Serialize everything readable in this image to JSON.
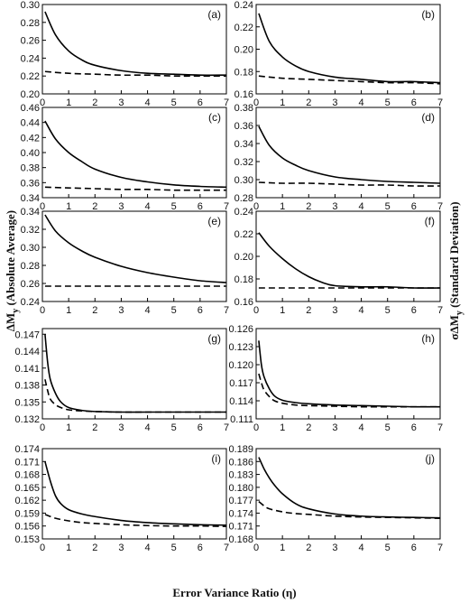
{
  "figure": {
    "xlabel": "Error Variance Ratio (η)",
    "ylabel_left": "ΔM",
    "ylabel_left_sub": "y",
    "ylabel_left_rest": "(Absolute Average)",
    "ylabel_right": "σΔM",
    "ylabel_right_sub": "y",
    "ylabel_right_rest": "(Standard Deviation)"
  },
  "chart_data": [
    {
      "type": "line",
      "panel_label": "(a)",
      "xlim": [
        0,
        7
      ],
      "xticks": [
        0,
        1,
        2,
        3,
        4,
        5,
        6,
        7
      ],
      "ylim": [
        0.2,
        0.3
      ],
      "yticks": [
        0.2,
        0.22,
        0.24,
        0.26,
        0.28,
        0.3
      ],
      "ytick_labels": [
        "0.20",
        "0.22",
        "0.24",
        "0.26",
        "0.28",
        "0.30"
      ],
      "series": [
        {
          "style": "solid",
          "x": [
            0.1,
            0.5,
            1,
            1.5,
            2,
            3,
            4,
            5,
            6,
            7
          ],
          "y": [
            0.292,
            0.266,
            0.248,
            0.238,
            0.232,
            0.226,
            0.223,
            0.222,
            0.221,
            0.221
          ]
        },
        {
          "style": "dashed",
          "x": [
            0.1,
            1,
            2,
            3,
            4,
            5,
            6,
            7
          ],
          "y": [
            0.225,
            0.223,
            0.222,
            0.221,
            0.221,
            0.22,
            0.22,
            0.22
          ]
        }
      ]
    },
    {
      "type": "line",
      "panel_label": "(b)",
      "xlim": [
        0,
        7
      ],
      "xticks": [
        0,
        1,
        2,
        3,
        4,
        5,
        6,
        7
      ],
      "ylim": [
        0.16,
        0.24
      ],
      "yticks": [
        0.16,
        0.18,
        0.2,
        0.22,
        0.24
      ],
      "ytick_labels": [
        "0.16",
        "0.18",
        "0.20",
        "0.22",
        "0.24"
      ],
      "series": [
        {
          "style": "solid",
          "x": [
            0.1,
            0.5,
            1,
            1.5,
            2,
            3,
            4,
            5,
            6,
            7
          ],
          "y": [
            0.232,
            0.207,
            0.193,
            0.185,
            0.18,
            0.175,
            0.173,
            0.171,
            0.171,
            0.17
          ]
        },
        {
          "style": "dashed",
          "x": [
            0.1,
            1,
            2,
            3,
            4,
            5,
            6,
            7
          ],
          "y": [
            0.176,
            0.174,
            0.173,
            0.172,
            0.171,
            0.17,
            0.17,
            0.169
          ]
        }
      ]
    },
    {
      "type": "line",
      "panel_label": "(c)",
      "xlim": [
        0,
        7
      ],
      "xticks": [
        0,
        1,
        2,
        3,
        4,
        5,
        6,
        7
      ],
      "ylim": [
        0.34,
        0.46
      ],
      "yticks": [
        0.34,
        0.36,
        0.38,
        0.4,
        0.42,
        0.44,
        0.46
      ],
      "ytick_labels": [
        "0.34",
        "0.36",
        "0.38",
        "0.40",
        "0.42",
        "0.44",
        "0.46"
      ],
      "series": [
        {
          "style": "solid",
          "x": [
            0.1,
            0.5,
            1,
            1.5,
            2,
            3,
            4,
            5,
            6,
            7
          ],
          "y": [
            0.442,
            0.418,
            0.4,
            0.388,
            0.378,
            0.367,
            0.361,
            0.357,
            0.355,
            0.354
          ]
        },
        {
          "style": "dashed",
          "x": [
            0.1,
            1,
            2,
            3,
            4,
            5,
            6,
            7
          ],
          "y": [
            0.354,
            0.353,
            0.352,
            0.351,
            0.351,
            0.35,
            0.35,
            0.35
          ]
        }
      ]
    },
    {
      "type": "line",
      "panel_label": "(d)",
      "xlim": [
        0,
        7
      ],
      "xticks": [
        0,
        1,
        2,
        3,
        4,
        5,
        6,
        7
      ],
      "ylim": [
        0.28,
        0.38
      ],
      "yticks": [
        0.28,
        0.3,
        0.32,
        0.34,
        0.36,
        0.38
      ],
      "ytick_labels": [
        "0.28",
        "0.30",
        "0.32",
        "0.34",
        "0.36",
        "0.38"
      ],
      "series": [
        {
          "style": "solid",
          "x": [
            0.1,
            0.5,
            1,
            1.5,
            2,
            3,
            4,
            5,
            6,
            7
          ],
          "y": [
            0.359,
            0.338,
            0.324,
            0.316,
            0.31,
            0.303,
            0.3,
            0.298,
            0.297,
            0.296
          ]
        },
        {
          "style": "dashed",
          "x": [
            0.1,
            1,
            2,
            3,
            4,
            5,
            6,
            7
          ],
          "y": [
            0.297,
            0.296,
            0.296,
            0.295,
            0.294,
            0.294,
            0.293,
            0.293
          ]
        }
      ]
    },
    {
      "type": "line",
      "panel_label": "(e)",
      "xlim": [
        0,
        7
      ],
      "xticks": [
        0,
        1,
        2,
        3,
        4,
        5,
        6,
        7
      ],
      "ylim": [
        0.24,
        0.34
      ],
      "yticks": [
        0.24,
        0.26,
        0.28,
        0.3,
        0.32,
        0.34
      ],
      "ytick_labels": [
        "0.24",
        "0.26",
        "0.28",
        "0.30",
        "0.32",
        "0.34"
      ],
      "series": [
        {
          "style": "solid",
          "x": [
            0.1,
            0.5,
            1,
            1.5,
            2,
            3,
            4,
            5,
            6,
            7
          ],
          "y": [
            0.336,
            0.318,
            0.305,
            0.296,
            0.289,
            0.279,
            0.272,
            0.267,
            0.263,
            0.261
          ]
        },
        {
          "style": "dashed",
          "x": [
            0.1,
            1,
            2,
            3,
            4,
            5,
            6,
            7
          ],
          "y": [
            0.257,
            0.257,
            0.257,
            0.257,
            0.257,
            0.257,
            0.257,
            0.257
          ]
        }
      ]
    },
    {
      "type": "line",
      "panel_label": "(f)",
      "xlim": [
        0,
        7
      ],
      "xticks": [
        0,
        1,
        2,
        3,
        4,
        5,
        6,
        7
      ],
      "ylim": [
        0.16,
        0.24
      ],
      "yticks": [
        0.16,
        0.18,
        0.2,
        0.22,
        0.24
      ],
      "ytick_labels": [
        "0.16",
        "0.18",
        "0.20",
        "0.22",
        "0.24"
      ],
      "series": [
        {
          "style": "solid",
          "x": [
            0.1,
            0.5,
            1,
            1.5,
            2,
            2.5,
            3,
            4,
            5,
            6,
            7
          ],
          "y": [
            0.221,
            0.209,
            0.198,
            0.189,
            0.182,
            0.177,
            0.174,
            0.173,
            0.173,
            0.172,
            0.172
          ]
        },
        {
          "style": "dashed",
          "x": [
            0.1,
            1,
            2,
            3,
            4,
            5,
            6,
            7
          ],
          "y": [
            0.172,
            0.172,
            0.172,
            0.172,
            0.172,
            0.172,
            0.172,
            0.172
          ]
        }
      ]
    },
    {
      "type": "line",
      "panel_label": "(g)",
      "xlim": [
        0,
        7
      ],
      "xticks": [
        0,
        1,
        2,
        3,
        4,
        5,
        6,
        7
      ],
      "ylim": [
        0.132,
        0.148
      ],
      "yticks": [
        0.132,
        0.135,
        0.138,
        0.141,
        0.144,
        0.147
      ],
      "ytick_labels": [
        "0.132",
        "0.135",
        "0.138",
        "0.141",
        "0.144",
        "0.147"
      ],
      "series": [
        {
          "style": "solid",
          "x": [
            0.1,
            0.2,
            0.3,
            0.5,
            0.7,
            1,
            1.5,
            2,
            3,
            4,
            5,
            6,
            7
          ],
          "y": [
            0.147,
            0.142,
            0.139,
            0.1365,
            0.135,
            0.134,
            0.1335,
            0.1333,
            0.1332,
            0.1332,
            0.1332,
            0.1332,
            0.1332
          ]
        },
        {
          "style": "dashed",
          "x": [
            0.1,
            0.2,
            0.3,
            0.5,
            0.7,
            1,
            1.5,
            2,
            3,
            4,
            5,
            6,
            7
          ],
          "y": [
            0.139,
            0.137,
            0.1355,
            0.1345,
            0.134,
            0.1336,
            0.1334,
            0.1333,
            0.1332,
            0.1332,
            0.1332,
            0.1332,
            0.1332
          ]
        }
      ]
    },
    {
      "type": "line",
      "panel_label": "(h)",
      "xlim": [
        0,
        7
      ],
      "xticks": [
        0,
        1,
        2,
        3,
        4,
        5,
        6,
        7
      ],
      "ylim": [
        0.111,
        0.126
      ],
      "yticks": [
        0.111,
        0.114,
        0.117,
        0.12,
        0.123,
        0.126
      ],
      "ytick_labels": [
        "0.111",
        "0.114",
        "0.117",
        "0.120",
        "0.123",
        "0.126"
      ],
      "series": [
        {
          "style": "solid",
          "x": [
            0.1,
            0.2,
            0.3,
            0.5,
            0.7,
            1,
            1.5,
            2,
            3,
            4,
            5,
            6,
            7
          ],
          "y": [
            0.124,
            0.12,
            0.118,
            0.116,
            0.1148,
            0.1141,
            0.1137,
            0.1135,
            0.1133,
            0.1132,
            0.1131,
            0.113,
            0.113
          ]
        },
        {
          "style": "dashed",
          "x": [
            0.1,
            0.2,
            0.3,
            0.5,
            0.7,
            1,
            1.5,
            2,
            3,
            4,
            5,
            6,
            7
          ],
          "y": [
            0.1185,
            0.117,
            0.1158,
            0.1147,
            0.114,
            0.1136,
            0.1133,
            0.1132,
            0.1131,
            0.113,
            0.113,
            0.113,
            0.113
          ]
        }
      ]
    },
    {
      "type": "line",
      "panel_label": "(i)",
      "xlim": [
        0,
        7
      ],
      "xticks": [
        0,
        1,
        2,
        3,
        4,
        5,
        6,
        7
      ],
      "ylim": [
        0.153,
        0.174
      ],
      "yticks": [
        0.153,
        0.156,
        0.159,
        0.162,
        0.165,
        0.168,
        0.171,
        0.174
      ],
      "ytick_labels": [
        "0.153",
        "0.156",
        "0.159",
        "0.162",
        "0.165",
        "0.168",
        "0.171",
        "0.174"
      ],
      "series": [
        {
          "style": "solid",
          "x": [
            0.1,
            0.3,
            0.5,
            0.7,
            1,
            1.5,
            2,
            3,
            4,
            5,
            6,
            7
          ],
          "y": [
            0.171,
            0.1665,
            0.163,
            0.1612,
            0.1598,
            0.1588,
            0.1582,
            0.1573,
            0.1568,
            0.1565,
            0.1563,
            0.1562
          ]
        },
        {
          "style": "dashed",
          "x": [
            0.1,
            0.5,
            1,
            1.5,
            2,
            3,
            4,
            5,
            6,
            7
          ],
          "y": [
            0.1587,
            0.1578,
            0.1572,
            0.1568,
            0.1566,
            0.1563,
            0.1561,
            0.156,
            0.156,
            0.1559
          ]
        }
      ]
    },
    {
      "type": "line",
      "panel_label": "(j)",
      "xlim": [
        0,
        7
      ],
      "xticks": [
        0,
        1,
        2,
        3,
        4,
        5,
        6,
        7
      ],
      "ylim": [
        0.168,
        0.189
      ],
      "yticks": [
        0.168,
        0.171,
        0.174,
        0.177,
        0.18,
        0.183,
        0.186,
        0.189
      ],
      "ytick_labels": [
        "0.168",
        "0.171",
        "0.174",
        "0.177",
        "0.180",
        "0.183",
        "0.186",
        "0.189"
      ],
      "series": [
        {
          "style": "solid",
          "x": [
            0.1,
            0.3,
            0.5,
            0.7,
            1,
            1.5,
            2,
            3,
            4,
            5,
            6,
            7
          ],
          "y": [
            0.187,
            0.1843,
            0.1822,
            0.1805,
            0.1785,
            0.1762,
            0.175,
            0.1738,
            0.1733,
            0.1731,
            0.173,
            0.1729
          ]
        },
        {
          "style": "dashed",
          "x": [
            0.1,
            0.3,
            0.5,
            1,
            1.5,
            2,
            3,
            4,
            5,
            6,
            7
          ],
          "y": [
            0.1767,
            0.1757,
            0.175,
            0.1743,
            0.1739,
            0.1737,
            0.1733,
            0.1731,
            0.173,
            0.1729,
            0.1728
          ]
        }
      ]
    }
  ]
}
